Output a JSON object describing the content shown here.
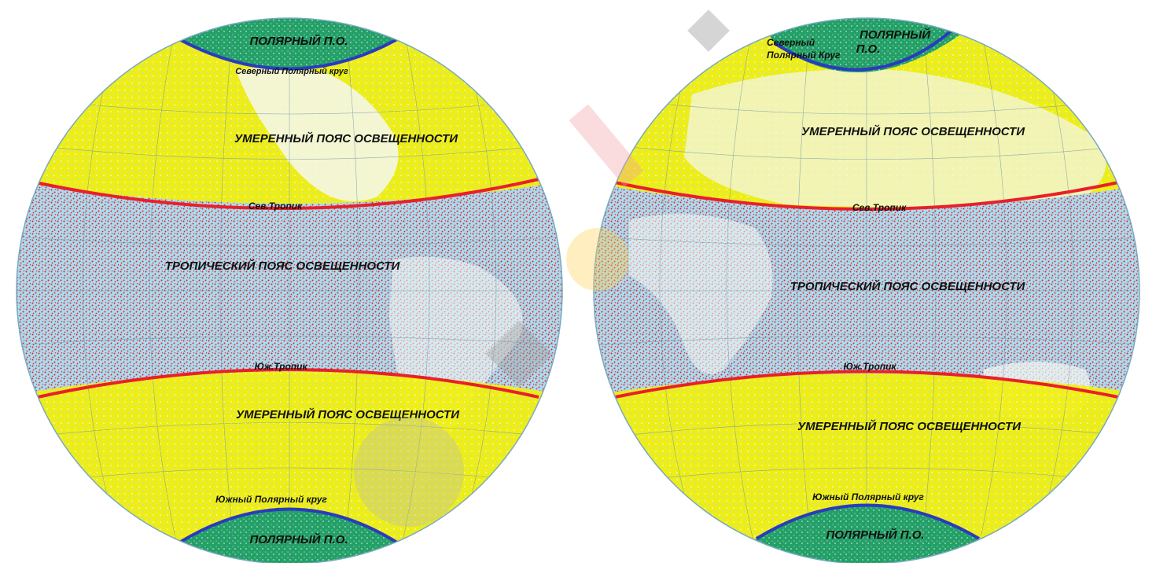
{
  "colors": {
    "ocean": "#a9dcef",
    "land": "#f4f7f2",
    "polar_zone": "#23a067",
    "temperate_zone": "#f5f000",
    "tropical_zone": "#e8202b",
    "polar_circle_line": "#2b3bbd",
    "tropic_line": "#e8202b",
    "graticule": "#6b8fa6",
    "watermark": "#cccccc"
  },
  "western_hemisphere": {
    "polar_north": "ПОЛЯРНЫЙ П.О.",
    "arctic_circle": "Северный Полярный круг",
    "temperate_north": "УМЕРЕННЫЙ ПОЯС ОСВЕЩЕННОСТИ",
    "tropic_north": "Сев.Тропик",
    "tropical": "ТРОПИЧЕСКИЙ ПОЯС ОСВЕЩЕННОСТИ",
    "tropic_south": "Юж.Тропик",
    "temperate_south": "УМЕРЕННЫЙ ПОЯС ОСВЕЩЕННОСТИ",
    "antarctic_circle": "Южный Полярный круг",
    "polar_south": "ПОЛЯРНЫЙ П.О."
  },
  "eastern_hemisphere": {
    "arctic_circle_line1": "Северный",
    "arctic_circle_line2": "Полярный Круг",
    "polar_north_line1": "ПОЛЯРНЫЙ",
    "polar_north_line2": "П.О.",
    "temperate_north": "УМЕРЕННЫЙ ПОЯС ОСВЕЩЕННОСТИ",
    "tropic_north": "Сев.Тропик",
    "tropical": "ТРОПИЧЕСКИЙ ПОЯС ОСВЕЩЕННОСТИ",
    "tropic_south": "Юж.Тропик",
    "temperate_south": "УМЕРЕННЫЙ ПОЯС ОСВЕЩЕННОСТИ",
    "antarctic_circle": "Южный Полярный круг",
    "polar_south": "ПОЛЯРНЫЙ П.О."
  }
}
